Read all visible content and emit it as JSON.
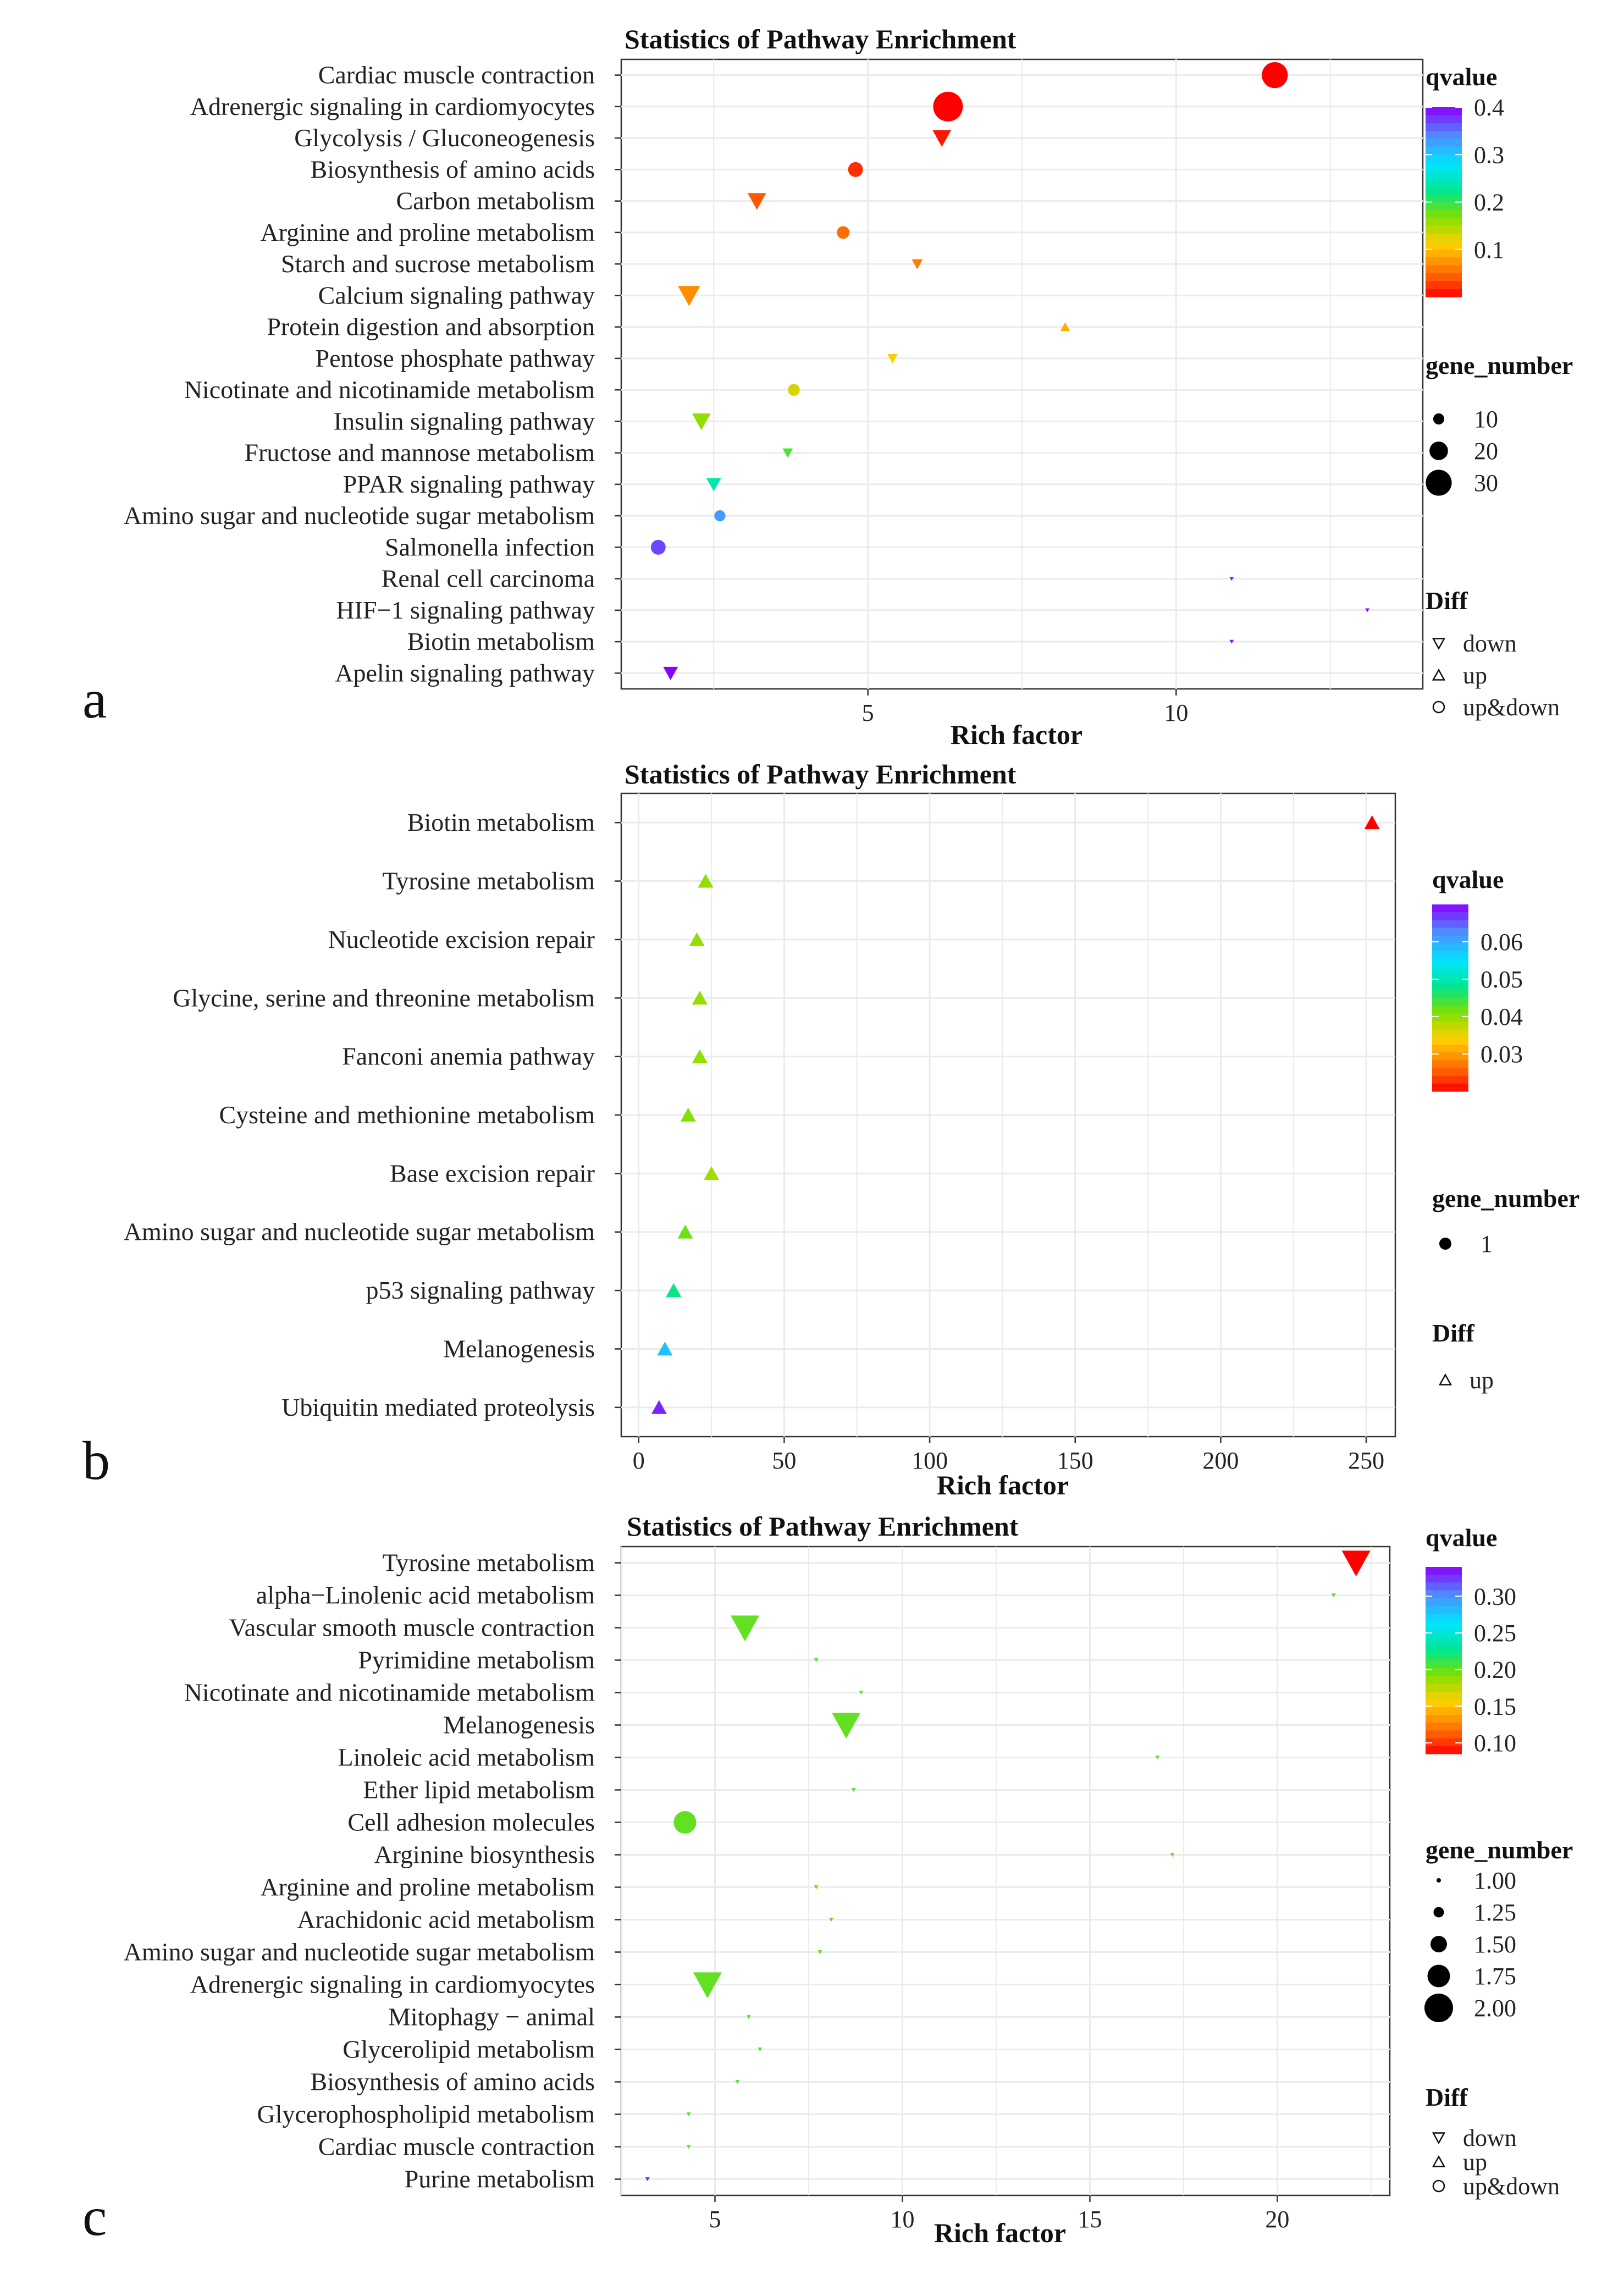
{
  "chart_data": [
    {
      "panel": "a",
      "type": "scatter",
      "title": "Statistics of Pathway Enrichment",
      "xlabel": "Rich factor",
      "ylabel": "",
      "xlim": [
        1,
        14
      ],
      "xticks": [
        5,
        10
      ],
      "categories": [
        "Cardiac muscle contraction",
        "Adrenergic signaling in cardiomyocytes",
        "Glycolysis / Gluconeogenesis",
        "Biosynthesis of amino acids",
        "Carbon metabolism",
        "Arginine and proline metabolism",
        "Starch and sucrose metabolism",
        "Calcium signaling pathway",
        "Protein digestion and absorption",
        "Pentose phosphate pathway",
        "Nicotinate and nicotinamide metabolism",
        "Insulin signaling pathway",
        "Fructose and mannose metabolism",
        "PPAR signaling pathway",
        "Amino sugar and nucleotide sugar metabolism",
        "Salmonella infection",
        "Renal cell carcinoma",
        "HIF−1 signaling pathway",
        "Biotin metabolism",
        "Apelin signaling pathway"
      ],
      "points": [
        {
          "x": 11.6,
          "qvalue": 0.0,
          "gene_number": 30,
          "diff": "up&down"
        },
        {
          "x": 6.3,
          "qvalue": 0.0,
          "gene_number": 35,
          "diff": "up&down"
        },
        {
          "x": 6.2,
          "qvalue": 0.01,
          "gene_number": 20,
          "diff": "down"
        },
        {
          "x": 4.8,
          "qvalue": 0.02,
          "gene_number": 15,
          "diff": "up&down"
        },
        {
          "x": 3.2,
          "qvalue": 0.04,
          "gene_number": 20,
          "diff": "down"
        },
        {
          "x": 4.6,
          "qvalue": 0.05,
          "gene_number": 12,
          "diff": "up&down"
        },
        {
          "x": 5.8,
          "qvalue": 0.06,
          "gene_number": 10,
          "diff": "down"
        },
        {
          "x": 2.1,
          "qvalue": 0.07,
          "gene_number": 25,
          "diff": "down"
        },
        {
          "x": 8.2,
          "qvalue": 0.09,
          "gene_number": 8,
          "diff": "up"
        },
        {
          "x": 5.4,
          "qvalue": 0.11,
          "gene_number": 9,
          "diff": "down"
        },
        {
          "x": 3.8,
          "qvalue": 0.13,
          "gene_number": 11,
          "diff": "up&down"
        },
        {
          "x": 2.3,
          "qvalue": 0.16,
          "gene_number": 20,
          "diff": "down"
        },
        {
          "x": 3.7,
          "qvalue": 0.19,
          "gene_number": 9,
          "diff": "down"
        },
        {
          "x": 2.5,
          "qvalue": 0.24,
          "gene_number": 15,
          "diff": "down"
        },
        {
          "x": 2.6,
          "qvalue": 0.33,
          "gene_number": 10,
          "diff": "up&down"
        },
        {
          "x": 1.6,
          "qvalue": 0.37,
          "gene_number": 15,
          "diff": "up&down"
        },
        {
          "x": 10.9,
          "qvalue": 0.39,
          "gene_number": 1,
          "diff": "down"
        },
        {
          "x": 13.1,
          "qvalue": 0.39,
          "gene_number": 1,
          "diff": "down"
        },
        {
          "x": 10.9,
          "qvalue": 0.39,
          "gene_number": 1,
          "diff": "down"
        },
        {
          "x": 1.8,
          "qvalue": 0.4,
          "gene_number": 15,
          "diff": "down"
        }
      ],
      "legend": {
        "color_title": "qvalue",
        "color_range": [
          0.0,
          0.4
        ],
        "color_ticks": [
          0.1,
          0.2,
          0.3,
          0.4
        ],
        "size_title": "gene_number",
        "size_entries": [
          10,
          20,
          30
        ],
        "size_range": [
          1,
          35
        ],
        "shape_title": "Diff",
        "shape_entries": [
          "down",
          "up",
          "up&down"
        ]
      }
    },
    {
      "panel": "b",
      "type": "scatter",
      "title": "Statistics of Pathway Enrichment",
      "xlabel": "Rich factor",
      "ylabel": "",
      "xlim": [
        -6,
        260
      ],
      "xticks": [
        0,
        50,
        100,
        150,
        200,
        250
      ],
      "categories": [
        "Biotin metabolism",
        "Tyrosine metabolism",
        "Nucleotide excision repair",
        "Glycine, serine and threonine metabolism",
        "Fanconi anemia pathway",
        "Cysteine and methionine metabolism",
        "Base excision repair",
        "Amino sugar and nucleotide sugar metabolism",
        "p53 signaling pathway",
        "Melanogenesis",
        "Ubiquitin mediated proteolysis"
      ],
      "points": [
        {
          "x": 252,
          "qvalue": 0.02,
          "gene_number": 1,
          "diff": "up"
        },
        {
          "x": 23,
          "qvalue": 0.04,
          "gene_number": 1,
          "diff": "up"
        },
        {
          "x": 20,
          "qvalue": 0.04,
          "gene_number": 1,
          "diff": "up"
        },
        {
          "x": 21,
          "qvalue": 0.04,
          "gene_number": 1,
          "diff": "up"
        },
        {
          "x": 21,
          "qvalue": 0.04,
          "gene_number": 1,
          "diff": "up"
        },
        {
          "x": 17,
          "qvalue": 0.041,
          "gene_number": 1,
          "diff": "up"
        },
        {
          "x": 25,
          "qvalue": 0.039,
          "gene_number": 1,
          "diff": "up"
        },
        {
          "x": 16,
          "qvalue": 0.042,
          "gene_number": 1,
          "diff": "up"
        },
        {
          "x": 12,
          "qvalue": 0.047,
          "gene_number": 1,
          "diff": "up"
        },
        {
          "x": 9,
          "qvalue": 0.058,
          "gene_number": 1,
          "diff": "up"
        },
        {
          "x": 7,
          "qvalue": 0.068,
          "gene_number": 1,
          "diff": "up"
        }
      ],
      "legend": {
        "color_title": "qvalue",
        "color_range": [
          0.02,
          0.07
        ],
        "color_ticks": [
          0.03,
          0.04,
          0.05,
          0.06
        ],
        "size_title": "gene_number",
        "size_entries": [
          1
        ],
        "size_range": [
          1,
          1
        ],
        "shape_title": "Diff",
        "shape_entries": [
          "up"
        ]
      }
    },
    {
      "panel": "c",
      "type": "scatter",
      "title": "Statistics of Pathway Enrichment",
      "xlabel": "Rich factor",
      "ylabel": "",
      "xlim": [
        2.5,
        23
      ],
      "xticks": [
        5,
        10,
        15,
        20
      ],
      "categories": [
        "Tyrosine metabolism",
        "alpha−Linolenic acid metabolism",
        "Vascular smooth muscle contraction",
        "Pyrimidine metabolism",
        "Nicotinate and nicotinamide metabolism",
        "Melanogenesis",
        "Linoleic acid metabolism",
        "Ether lipid metabolism",
        "Cell adhesion molecules",
        "Arginine biosynthesis",
        "Arginine and proline metabolism",
        "Arachidonic acid metabolism",
        "Amino sugar and nucleotide sugar metabolism",
        "Adrenergic signaling in cardiomyocytes",
        "Mitophagy − animal",
        "Glycerolipid metabolism",
        "Biosynthesis of amino acids",
        "Glycerophospholipid metabolism",
        "Cardiac muscle contraction",
        "Purine metabolism"
      ],
      "points": [
        {
          "x": 22.1,
          "qvalue": 0.085,
          "gene_number": 2.0,
          "diff": "down"
        },
        {
          "x": 21.5,
          "qvalue": 0.2,
          "gene_number": 1.0,
          "diff": "down"
        },
        {
          "x": 5.8,
          "qvalue": 0.2,
          "gene_number": 2.0,
          "diff": "down"
        },
        {
          "x": 7.7,
          "qvalue": 0.2,
          "gene_number": 1.0,
          "diff": "down"
        },
        {
          "x": 8.9,
          "qvalue": 0.2,
          "gene_number": 1.0,
          "diff": "down"
        },
        {
          "x": 8.5,
          "qvalue": 0.2,
          "gene_number": 2.0,
          "diff": "down"
        },
        {
          "x": 16.8,
          "qvalue": 0.2,
          "gene_number": 1.0,
          "diff": "down"
        },
        {
          "x": 8.7,
          "qvalue": 0.2,
          "gene_number": 1.0,
          "diff": "down"
        },
        {
          "x": 4.2,
          "qvalue": 0.2,
          "gene_number": 1.75,
          "diff": "up&down"
        },
        {
          "x": 17.2,
          "qvalue": 0.2,
          "gene_number": 1.0,
          "diff": "down"
        },
        {
          "x": 7.7,
          "qvalue": 0.2,
          "gene_number": 1.0,
          "diff": "down"
        },
        {
          "x": 8.1,
          "qvalue": 0.2,
          "gene_number": 1.0,
          "diff": "down"
        },
        {
          "x": 7.8,
          "qvalue": 0.2,
          "gene_number": 1.0,
          "diff": "down"
        },
        {
          "x": 4.8,
          "qvalue": 0.2,
          "gene_number": 2.0,
          "diff": "down"
        },
        {
          "x": 5.9,
          "qvalue": 0.2,
          "gene_number": 1.0,
          "diff": "down"
        },
        {
          "x": 6.2,
          "qvalue": 0.2,
          "gene_number": 1.0,
          "diff": "down"
        },
        {
          "x": 5.6,
          "qvalue": 0.2,
          "gene_number": 1.0,
          "diff": "down"
        },
        {
          "x": 4.3,
          "qvalue": 0.2,
          "gene_number": 1.0,
          "diff": "down"
        },
        {
          "x": 4.3,
          "qvalue": 0.2,
          "gene_number": 1.0,
          "diff": "down"
        },
        {
          "x": 3.2,
          "qvalue": 0.33,
          "gene_number": 1.0,
          "diff": "down"
        }
      ],
      "legend": {
        "color_title": "qvalue",
        "color_range": [
          0.085,
          0.34
        ],
        "color_ticks": [
          0.1,
          0.15,
          0.2,
          0.25,
          0.3
        ],
        "color_tick_labels": [
          "0.10",
          "0.15",
          "0.20",
          "0.25",
          "0.30"
        ],
        "size_title": "gene_number",
        "size_entries": [
          1.0,
          1.25,
          1.5,
          1.75,
          2.0
        ],
        "size_entry_labels": [
          "1.00",
          "1.25",
          "1.50",
          "1.75",
          "2.00"
        ],
        "size_range": [
          1.0,
          2.0
        ],
        "shape_title": "Diff",
        "shape_entries": [
          "down",
          "up",
          "up&down"
        ]
      }
    }
  ]
}
